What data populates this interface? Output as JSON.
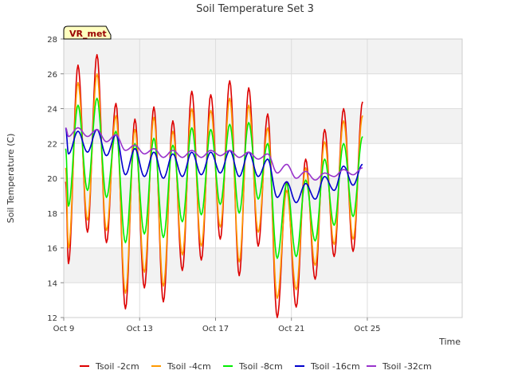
{
  "chart_data": {
    "type": "line",
    "title": "Soil Temperature Set 3",
    "xlabel": "Time",
    "ylabel": "Soil Temperature (C)",
    "badge": "VR_met",
    "xlim": [
      0,
      21
    ],
    "ylim": [
      12,
      28
    ],
    "yticks": [
      12,
      14,
      16,
      18,
      20,
      22,
      24,
      26,
      28
    ],
    "xticks": [
      {
        "day": 0,
        "label": "Oct 9"
      },
      {
        "day": 4,
        "label": "Oct 13"
      },
      {
        "day": 8,
        "label": "Oct 17"
      },
      {
        "day": 12,
        "label": "Oct 21"
      },
      {
        "day": 16,
        "label": "Oct 25"
      }
    ],
    "grid": true,
    "legend_position": "bottom",
    "days": [
      0.25,
      0.75,
      1.25,
      1.75,
      2.25,
      2.75,
      3.25,
      3.75,
      4.25,
      4.75,
      5.25,
      5.75,
      6.25,
      6.75,
      7.25,
      7.75,
      8.25,
      8.75,
      9.25,
      9.75,
      10.25,
      10.75,
      11.25,
      11.75,
      12.25,
      12.75,
      13.25,
      13.75,
      14.25,
      14.75,
      15.25,
      15.75,
      16.25,
      16.75,
      17.25,
      17.75
    ],
    "start_day": 0.1,
    "end_day": 18.9,
    "series": [
      {
        "name": "Tsoil -2cm",
        "color": "#dd0000",
        "start": 19.8,
        "end": 18.9,
        "min": [
          15.1,
          16.9,
          16.3,
          12.5,
          13.7,
          12.9,
          14.7,
          15.3,
          16.5,
          14.4,
          16.1,
          12.0,
          12.6,
          14.2,
          15.5,
          15.8
        ],
        "max": [
          26.5,
          27.1,
          24.3,
          23.4,
          24.1,
          23.3,
          25.0,
          24.8,
          25.6,
          25.2,
          23.7,
          19.8,
          21.1,
          22.8,
          24.0,
          24.4
        ]
      },
      {
        "name": "Tsoil -4cm",
        "color": "#ff9900",
        "start": 20.6,
        "end": 19.3,
        "min": [
          16.0,
          17.6,
          17.0,
          13.4,
          14.6,
          13.8,
          15.6,
          16.1,
          17.2,
          15.2,
          16.9,
          13.1,
          13.6,
          15.0,
          16.2,
          16.5
        ],
        "max": [
          25.5,
          26.0,
          23.6,
          22.8,
          23.5,
          22.7,
          24.0,
          23.9,
          24.6,
          24.2,
          22.9,
          19.3,
          20.6,
          22.1,
          23.3,
          23.6
        ]
      },
      {
        "name": "Tsoil -8cm",
        "color": "#00ee00",
        "start": 21.7,
        "end": 20.1,
        "min": [
          18.4,
          19.3,
          18.9,
          16.3,
          16.8,
          16.6,
          17.5,
          17.9,
          18.5,
          18.0,
          18.8,
          15.4,
          15.5,
          16.4,
          17.3,
          17.8
        ],
        "max": [
          24.2,
          24.6,
          22.7,
          22.0,
          22.3,
          21.9,
          22.9,
          22.8,
          23.1,
          23.2,
          22.0,
          19.7,
          19.9,
          21.1,
          22.0,
          22.4
        ]
      },
      {
        "name": "Tsoil -16cm",
        "color": "#0000cc",
        "start": 22.9,
        "end": 20.8,
        "min": [
          21.4,
          21.5,
          21.3,
          20.2,
          20.1,
          20.0,
          20.1,
          20.2,
          20.3,
          20.1,
          20.1,
          18.9,
          18.6,
          18.8,
          19.3,
          19.6
        ],
        "max": [
          22.7,
          22.8,
          22.5,
          21.7,
          21.5,
          21.4,
          21.5,
          21.5,
          21.6,
          21.5,
          21.1,
          19.8,
          19.7,
          20.1,
          20.7,
          20.8
        ]
      },
      {
        "name": "Tsoil -32cm",
        "color": "#9933cc",
        "start": 22.9,
        "end": 20.6,
        "min": [
          22.4,
          22.4,
          22.1,
          21.6,
          21.4,
          21.2,
          21.2,
          21.2,
          21.3,
          21.2,
          21.1,
          20.3,
          20.0,
          19.9,
          20.1,
          20.2
        ],
        "max": [
          22.9,
          22.8,
          22.5,
          21.9,
          21.7,
          21.6,
          21.6,
          21.6,
          21.6,
          21.5,
          21.4,
          20.8,
          20.4,
          20.3,
          20.5,
          20.6
        ]
      }
    ]
  }
}
